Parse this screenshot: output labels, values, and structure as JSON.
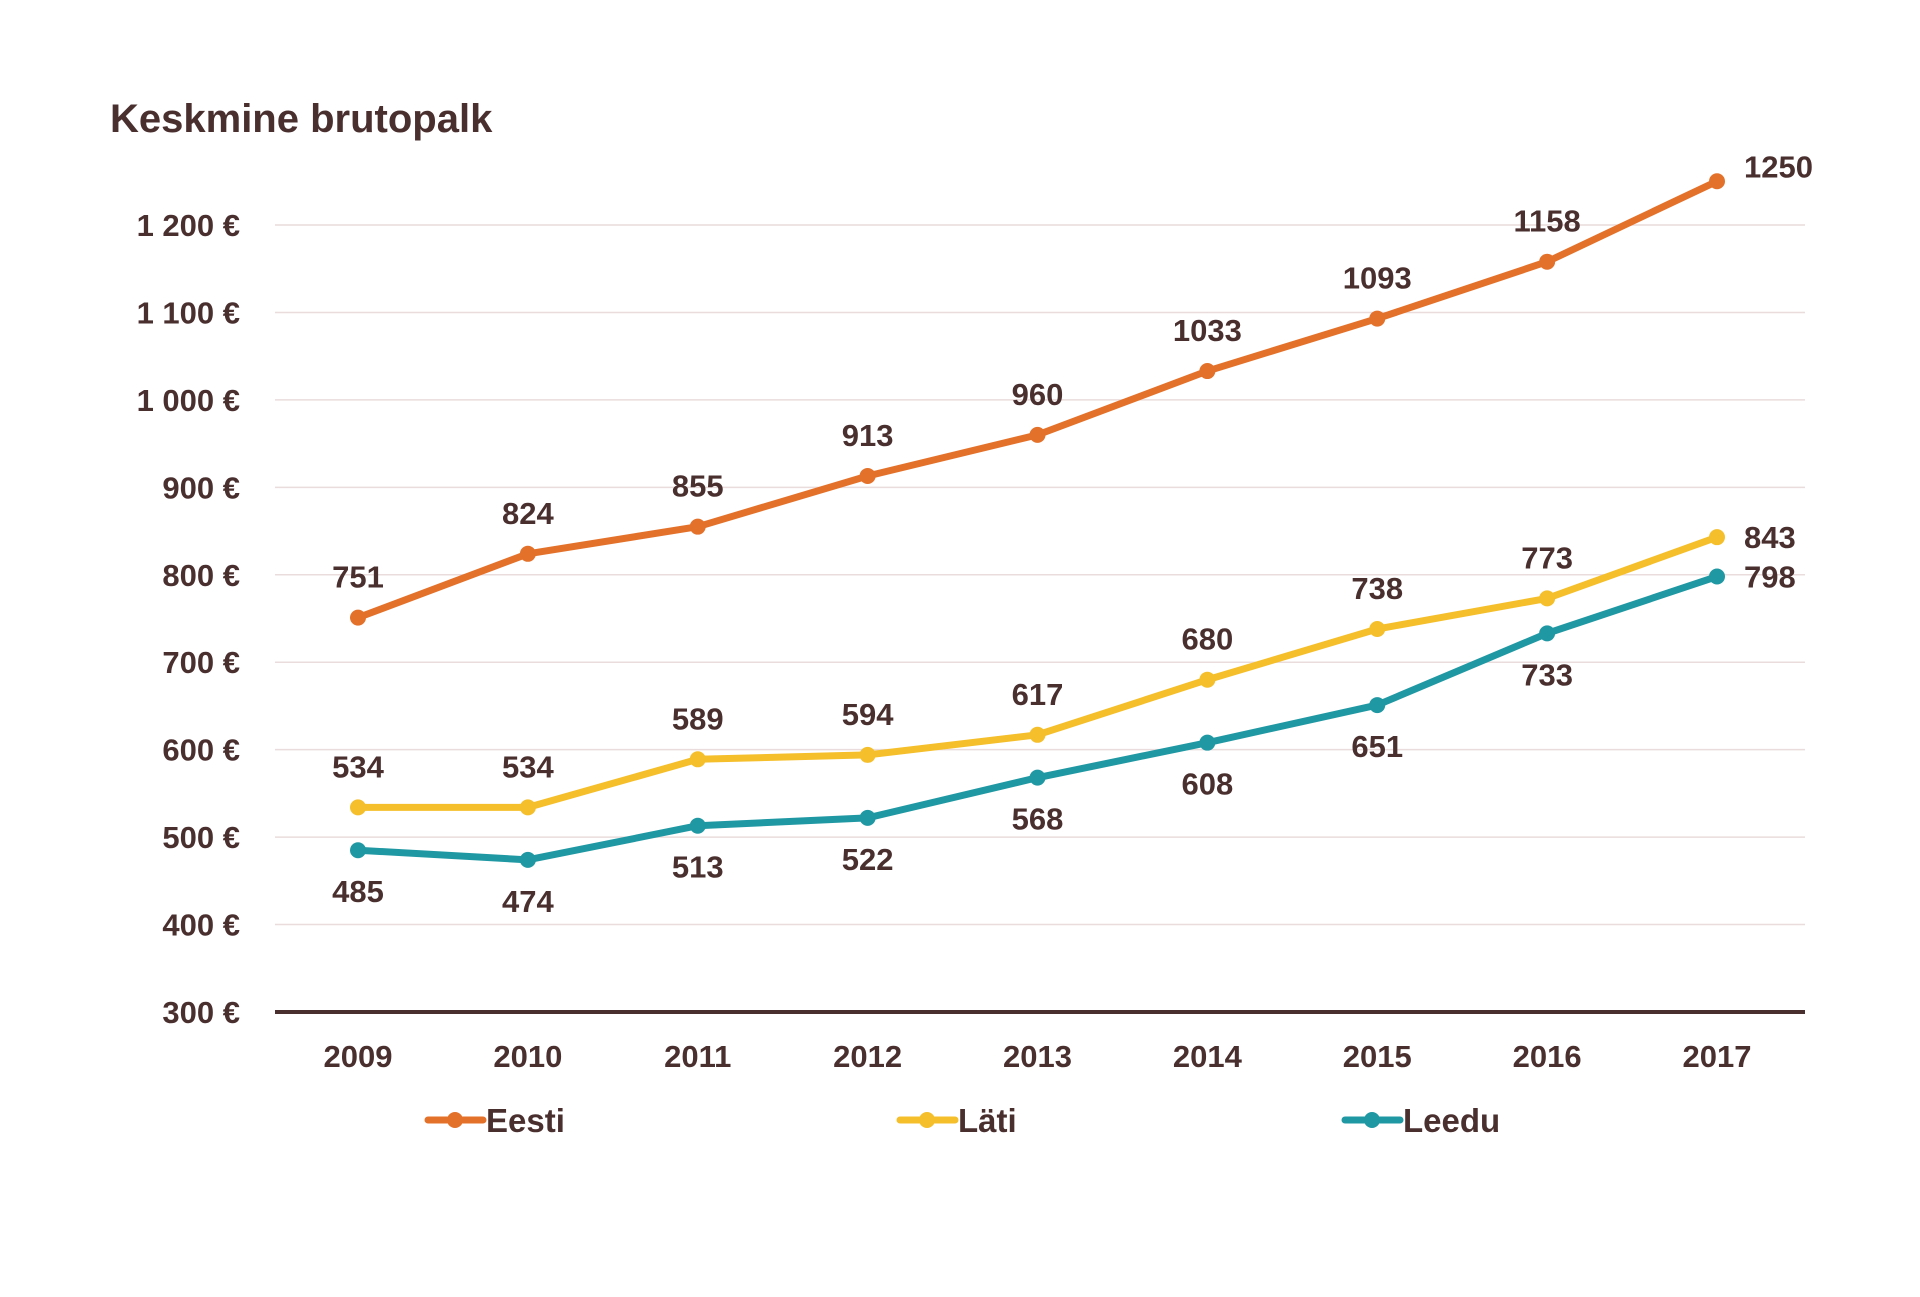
{
  "chart_data": {
    "type": "line",
    "title": "Keskmine brutopalk",
    "xlabel": "",
    "ylabel": "",
    "categories": [
      "2009",
      "2010",
      "2011",
      "2012",
      "2013",
      "2014",
      "2015",
      "2016",
      "2017"
    ],
    "ylim": [
      300,
      1250
    ],
    "y_ticks": [
      300,
      400,
      500,
      600,
      700,
      800,
      900,
      1000,
      1100,
      1200
    ],
    "y_tick_labels": [
      "300 €",
      "400 €",
      "500 €",
      "600 €",
      "700 €",
      "800 €",
      "900 €",
      "1 000 €",
      "1 100 €",
      "1 200 €"
    ],
    "grid": true,
    "legend_position": "bottom",
    "series": [
      {
        "name": "Eesti",
        "color": "#e4712a",
        "values": [
          751,
          824,
          855,
          913,
          960,
          1033,
          1093,
          1158,
          1250
        ],
        "label_positions": [
          "above",
          "above",
          "above",
          "above",
          "above",
          "above",
          "above",
          "above",
          "right"
        ]
      },
      {
        "name": "Läti",
        "color": "#f5bf2b",
        "values": [
          534,
          534,
          589,
          594,
          617,
          680,
          738,
          773,
          843
        ],
        "label_positions": [
          "above",
          "above",
          "above",
          "above",
          "above",
          "above",
          "above",
          "above",
          "right"
        ]
      },
      {
        "name": "Leedu",
        "color": "#1f98a3",
        "values": [
          485,
          474,
          513,
          522,
          568,
          608,
          651,
          733,
          798
        ],
        "label_positions": [
          "below",
          "below",
          "below",
          "below",
          "below",
          "below",
          "below",
          "below",
          "right"
        ]
      }
    ]
  }
}
